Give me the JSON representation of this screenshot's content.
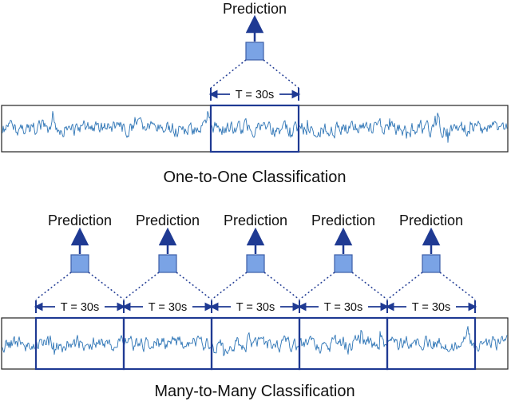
{
  "one_to_one": {
    "prediction_label": "Prediction",
    "window_label": "T = 30s",
    "caption": "One-to-One Classification"
  },
  "many_to_many": {
    "windows": [
      {
        "prediction_label": "Prediction",
        "window_label": "T = 30s"
      },
      {
        "prediction_label": "Prediction",
        "window_label": "T = 30s"
      },
      {
        "prediction_label": "Prediction",
        "window_label": "T = 30s"
      },
      {
        "prediction_label": "Prediction",
        "window_label": "T = 30s"
      },
      {
        "prediction_label": "Prediction",
        "window_label": "T = 30s"
      }
    ],
    "caption": "Many-to-Many Classification"
  },
  "colors": {
    "signal": "#2e75b6",
    "window_border": "#1f3a93",
    "arrow": "#1f3a93",
    "box_fill": "#7aa3e5",
    "box_stroke": "#3d5fa8",
    "frame": "#222222"
  }
}
